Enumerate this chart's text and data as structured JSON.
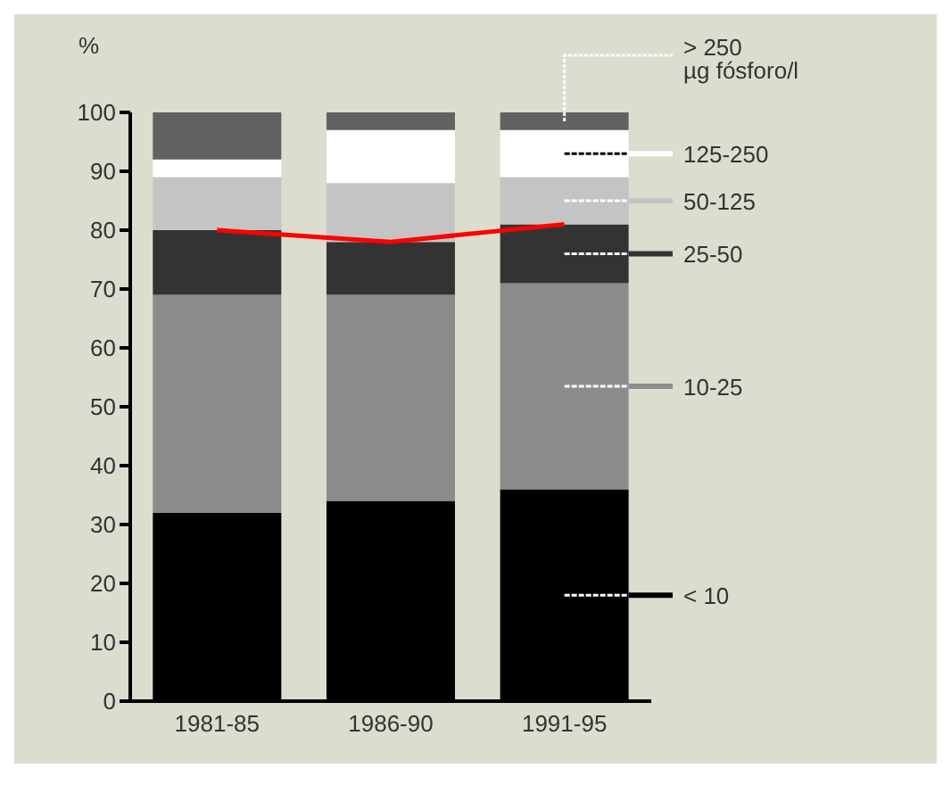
{
  "chart_data": {
    "type": "bar",
    "stacked": true,
    "legend": "right",
    "ylabel": "%",
    "categories": [
      "1981-85",
      "1986-90",
      "1991-95"
    ],
    "ylim": [
      0,
      100
    ],
    "yticks": [
      0,
      10,
      20,
      30,
      40,
      50,
      60,
      70,
      80,
      90,
      100
    ],
    "series": [
      {
        "name": "< 10",
        "color": "#000000",
        "values": [
          32,
          34,
          36
        ]
      },
      {
        "name": "10-25",
        "color": "#8c8c8c",
        "values": [
          37,
          35,
          35
        ]
      },
      {
        "name": "25-50",
        "color": "#333333",
        "values": [
          11,
          9,
          10
        ]
      },
      {
        "name": "50-125",
        "color": "#c4c4c4",
        "values": [
          9,
          10,
          8
        ]
      },
      {
        "name": "125-250",
        "color": "#ffffff",
        "values": [
          3,
          9,
          8
        ]
      },
      {
        "name": "> 250 µg fósforo/l",
        "color": "#626262",
        "values": [
          8,
          3,
          3
        ]
      },
      {
        "type": "line",
        "color": "#ff0000",
        "values": [
          80,
          78,
          81
        ]
      }
    ]
  }
}
